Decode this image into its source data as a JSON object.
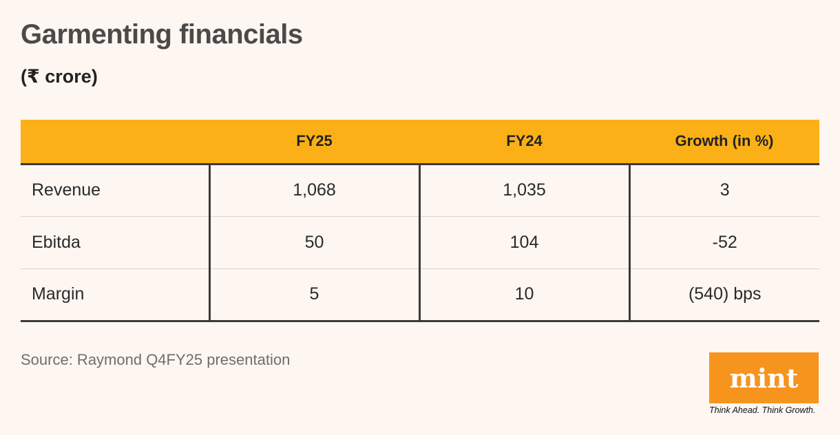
{
  "title": "Garmenting financials",
  "subtitle": "(₹ crore)",
  "chart_data": {
    "type": "table",
    "columns": [
      "",
      "FY25",
      "FY24",
      "Growth (in %)"
    ],
    "rows": [
      {
        "label": "Revenue",
        "fy25": "1,068",
        "fy24": "1,035",
        "growth": "3"
      },
      {
        "label": "Ebitda",
        "fy25": "50",
        "fy24": "104",
        "growth": "-52"
      },
      {
        "label": "Margin",
        "fy25": "5",
        "fy24": "10",
        "growth": "(540) bps"
      }
    ]
  },
  "source": "Source: Raymond Q4FY25 presentation",
  "logo": {
    "text": "mint",
    "tagline": "Think Ahead. Think Growth."
  },
  "colors": {
    "header": "#fbb017",
    "logo": "#f7941d",
    "background": "#fdf6f1"
  }
}
